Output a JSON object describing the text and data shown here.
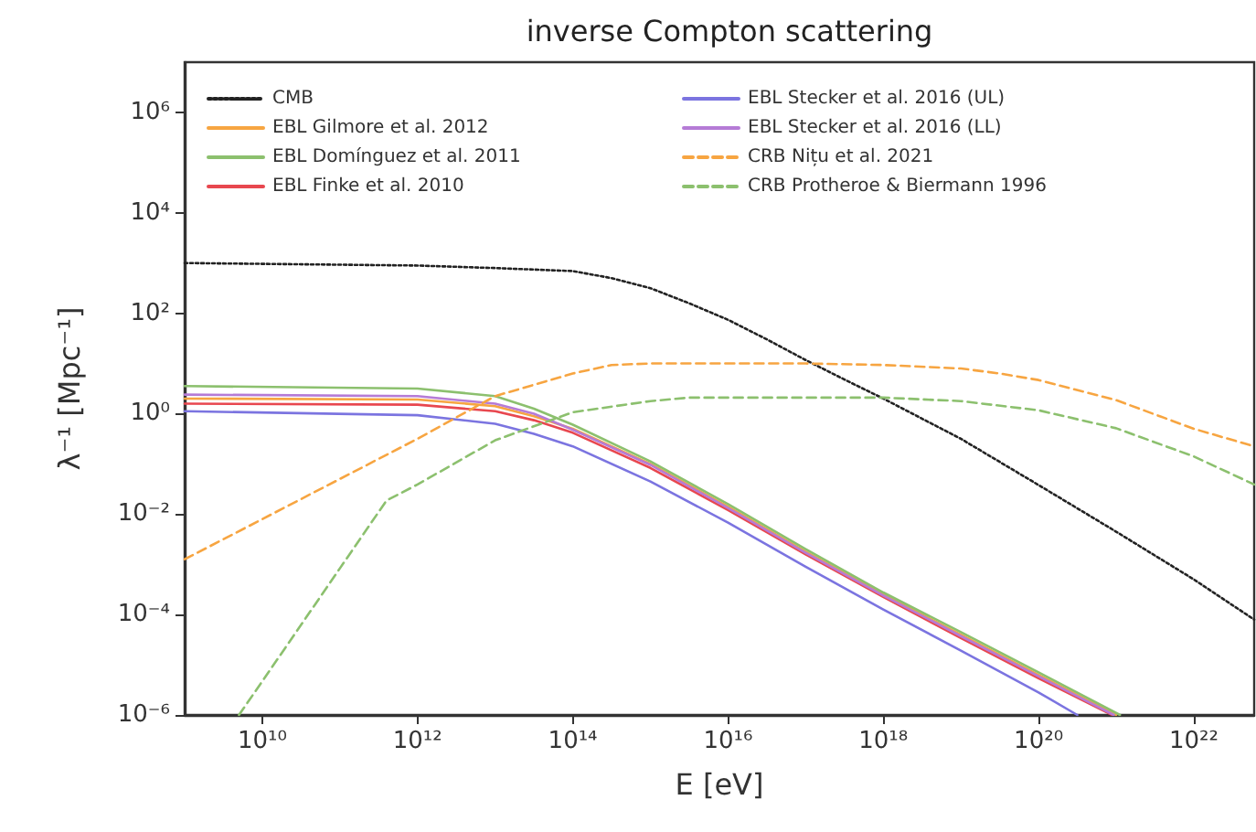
{
  "chart_data": {
    "type": "line",
    "title": "inverse Compton scattering",
    "xlabel": "E [eV]",
    "ylabel": "λ⁻¹ [Mpc⁻¹]",
    "log": "xy",
    "legend": "top left",
    "marker": "none",
    "xlim": [
      1000000000.0,
      6e+22
    ],
    "ylim": [
      1e-06,
      10000000.0
    ],
    "xticks": [
      {
        "value": 10000000000.0,
        "label": "10¹⁰"
      },
      {
        "value": 1000000000000.0,
        "label": "10¹²"
      },
      {
        "value": 100000000000000.0,
        "label": "10¹⁴"
      },
      {
        "value": 1e+16,
        "label": "10¹⁶"
      },
      {
        "value": 1e+18,
        "label": "10¹⁸"
      },
      {
        "value": 1e+20,
        "label": "10²⁰"
      },
      {
        "value": 1e+22,
        "label": "10²²"
      }
    ],
    "yticks": [
      {
        "value": 1e-06,
        "label": "10⁻⁶"
      },
      {
        "value": 0.0001,
        "label": "10⁻⁴"
      },
      {
        "value": 0.01,
        "label": "10⁻²"
      },
      {
        "value": 1,
        "label": "10⁰"
      },
      {
        "value": 100,
        "label": "10²"
      },
      {
        "value": 10000.0,
        "label": "10⁴"
      },
      {
        "value": 1000000.0,
        "label": "10⁶"
      }
    ],
    "series": [
      {
        "name": "CMB",
        "color": "#222222",
        "line_style": "dotted",
        "x": [
          1000000000.0,
          1000000000000.0,
          10000000000000.0,
          100000000000000.0,
          316000000000000.0,
          1000000000000000.0,
          3160000000000000.0,
          1e+16,
          3.16e+16,
          1e+17,
          3.16e+17,
          1e+18,
          1e+19,
          1e+20,
          1e+21,
          1e+22,
          6e+22
        ],
        "values": [
          1000,
          891,
          794,
          692,
          501,
          316,
          158,
          74.1,
          30.2,
          11.7,
          4.79,
          2.0,
          0.316,
          0.038,
          0.00447,
          0.000501,
          7.94e-05
        ]
      },
      {
        "name": "EBL Gilmore et al. 2012",
        "color": "#f7a541",
        "line_style": "solid",
        "x": [
          1000000000.0,
          1000000000000.0,
          10000000000000.0,
          31600000000000.0,
          100000000000000.0,
          1000000000000000.0,
          1e+16,
          1e+17,
          1e+18,
          1e+19,
          1e+20,
          1e+21
        ],
        "values": [
          2.0,
          1.91,
          1.41,
          0.891,
          0.501,
          0.1,
          0.0141,
          0.00178,
          0.000251,
          3.98e-05,
          6.31e-06,
          1e-06
        ]
      },
      {
        "name": "EBL Domínguez et al. 2011",
        "color": "#8cc06e",
        "line_style": "solid",
        "x": [
          1000000000.0,
          1000000000000.0,
          10000000000000.0,
          31600000000000.0,
          100000000000000.0,
          1000000000000000.0,
          1e+16,
          1e+17,
          1e+18,
          1e+19,
          1e+20,
          1.12e+21
        ],
        "values": [
          3.55,
          3.16,
          2.24,
          1.26,
          0.603,
          0.112,
          0.0158,
          0.002,
          0.000275,
          4.47e-05,
          7.08e-06,
          1e-06
        ]
      },
      {
        "name": "EBL Finke et al. 2010",
        "color": "#e8474f",
        "line_style": "solid",
        "x": [
          1000000000.0,
          1000000000000.0,
          10000000000000.0,
          31600000000000.0,
          100000000000000.0,
          1000000000000000.0,
          1e+16,
          1e+17,
          1e+18,
          1e+19,
          1e+20,
          8.91e+20
        ],
        "values": [
          1.58,
          1.51,
          1.12,
          0.741,
          0.417,
          0.0832,
          0.012,
          0.00158,
          0.000224,
          3.39e-05,
          5.37e-06,
          1e-06
        ]
      },
      {
        "name": "EBL Stecker et al. 2016 (UL)",
        "color": "#7b74e0",
        "line_style": "solid",
        "x": [
          1000000000.0,
          1000000000000.0,
          10000000000000.0,
          31600000000000.0,
          100000000000000.0,
          1000000000000000.0,
          1e+16,
          1e+17,
          1e+18,
          1e+19,
          1e+20,
          3.16e+20
        ],
        "values": [
          1.12,
          0.933,
          0.631,
          0.398,
          0.224,
          0.0447,
          0.00676,
          0.000891,
          0.000126,
          1.91e-05,
          2.82e-06,
          1e-06
        ]
      },
      {
        "name": "EBL Stecker et al. 2016 (LL)",
        "color": "#b57bd6",
        "line_style": "solid",
        "x": [
          1000000000.0,
          1000000000000.0,
          10000000000000.0,
          31600000000000.0,
          100000000000000.0,
          1000000000000000.0,
          1e+16,
          1e+17,
          1e+18,
          1e+19,
          1e+20,
          9.33e+20
        ],
        "values": [
          2.4,
          2.24,
          1.58,
          1.0,
          0.479,
          0.0955,
          0.0132,
          0.0017,
          0.00024,
          3.72e-05,
          5.89e-06,
          1e-06
        ]
      },
      {
        "name": "CRB Nițu et al. 2021",
        "color": "#f7a541",
        "line_style": "dashed",
        "x": [
          1000000000.0,
          10000000000.0,
          100000000000.0,
          1000000000000.0,
          10000000000000.0,
          100000000000000.0,
          316000000000000.0,
          1000000000000000.0,
          1e+17,
          1e+18,
          1e+19,
          3.16e+19,
          1e+20,
          1e+21,
          1e+22,
          6e+22
        ],
        "values": [
          0.00126,
          0.00794,
          0.0501,
          0.316,
          2.24,
          6.31,
          9.33,
          10,
          10,
          9.33,
          7.94,
          6.31,
          4.68,
          1.86,
          0.501,
          0.224
        ]
      },
      {
        "name": "CRB Protheroe & Biermann 1996",
        "color": "#8cc06e",
        "line_style": "dashed",
        "x": [
          5010000000.0,
          10000000000.0,
          100000000000.0,
          398000000000.0,
          1000000000000.0,
          10000000000000.0,
          100000000000000.0,
          1000000000000000.0,
          3160000000000000.0,
          1e+18,
          1e+19,
          1e+20,
          1e+21,
          1e+22,
          6e+22
        ],
        "values": [
          1e-06,
          4.68e-06,
          0.000832,
          0.0186,
          0.0389,
          0.295,
          1.07,
          1.78,
          2.09,
          2.09,
          1.78,
          1.17,
          0.513,
          0.141,
          0.0389
        ]
      }
    ]
  }
}
